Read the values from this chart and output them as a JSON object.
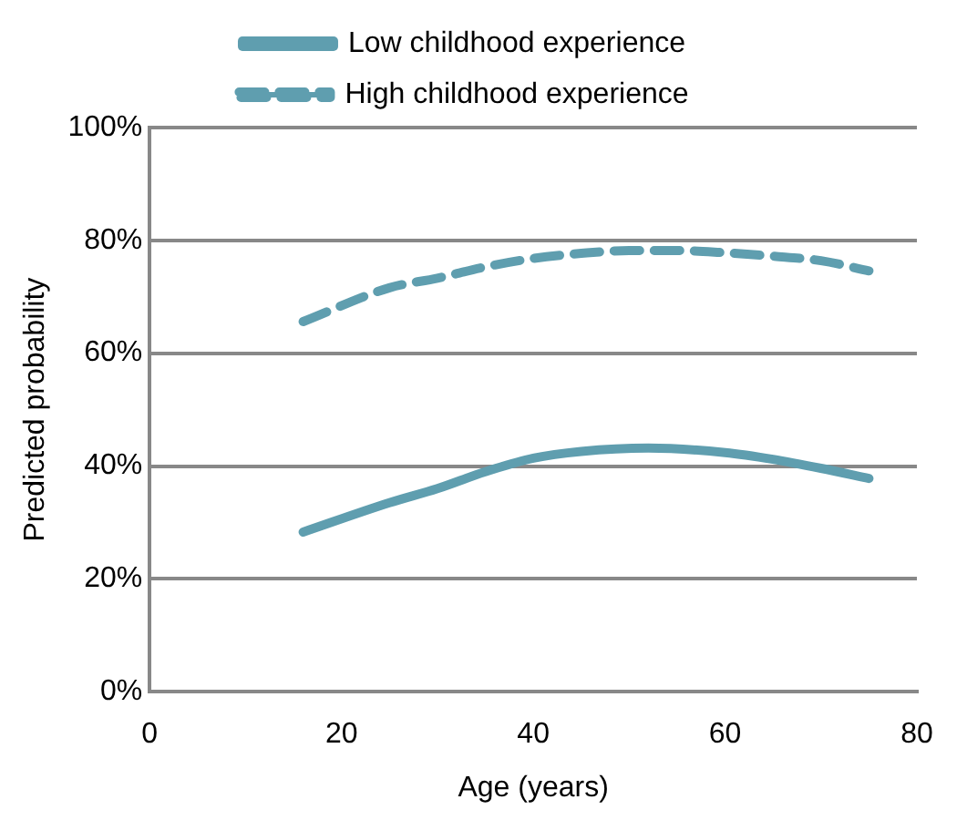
{
  "chart_data": {
    "type": "line",
    "xlabel": "Age (years)",
    "ylabel": "Predicted probability",
    "xlim": [
      0,
      80
    ],
    "xticks": [
      0,
      20,
      40,
      60,
      80
    ],
    "ylim": [
      0,
      100
    ],
    "yticks": [
      {
        "value": 0,
        "label": "0%"
      },
      {
        "value": 20,
        "label": "20%"
      },
      {
        "value": 40,
        "label": "40%"
      },
      {
        "value": 60,
        "label": "60%"
      },
      {
        "value": 80,
        "label": "80%"
      },
      {
        "value": 100,
        "label": "100%"
      }
    ],
    "grid": "y",
    "legend": "top",
    "marker": "none",
    "series": [
      {
        "name": "Low childhood experience",
        "color": "#5f9eaf",
        "line_style": "solid",
        "x": [
          16,
          25,
          30,
          35,
          40,
          45,
          52,
          60,
          65,
          70,
          75
        ],
        "values": [
          28.3,
          33.5,
          36,
          39,
          41.4,
          42.6,
          43.2,
          42.4,
          41.2,
          39.6,
          37.8
        ]
      },
      {
        "name": "High childhood experience",
        "color": "#5f9eaf",
        "line_style": "dashed",
        "x": [
          16,
          25,
          30,
          35,
          40,
          45,
          50,
          55,
          60,
          65,
          70,
          75
        ],
        "values": [
          65.6,
          71.6,
          73.3,
          75.3,
          76.8,
          77.7,
          78.2,
          78.2,
          77.8,
          77.2,
          76.4,
          74.6
        ]
      }
    ]
  }
}
